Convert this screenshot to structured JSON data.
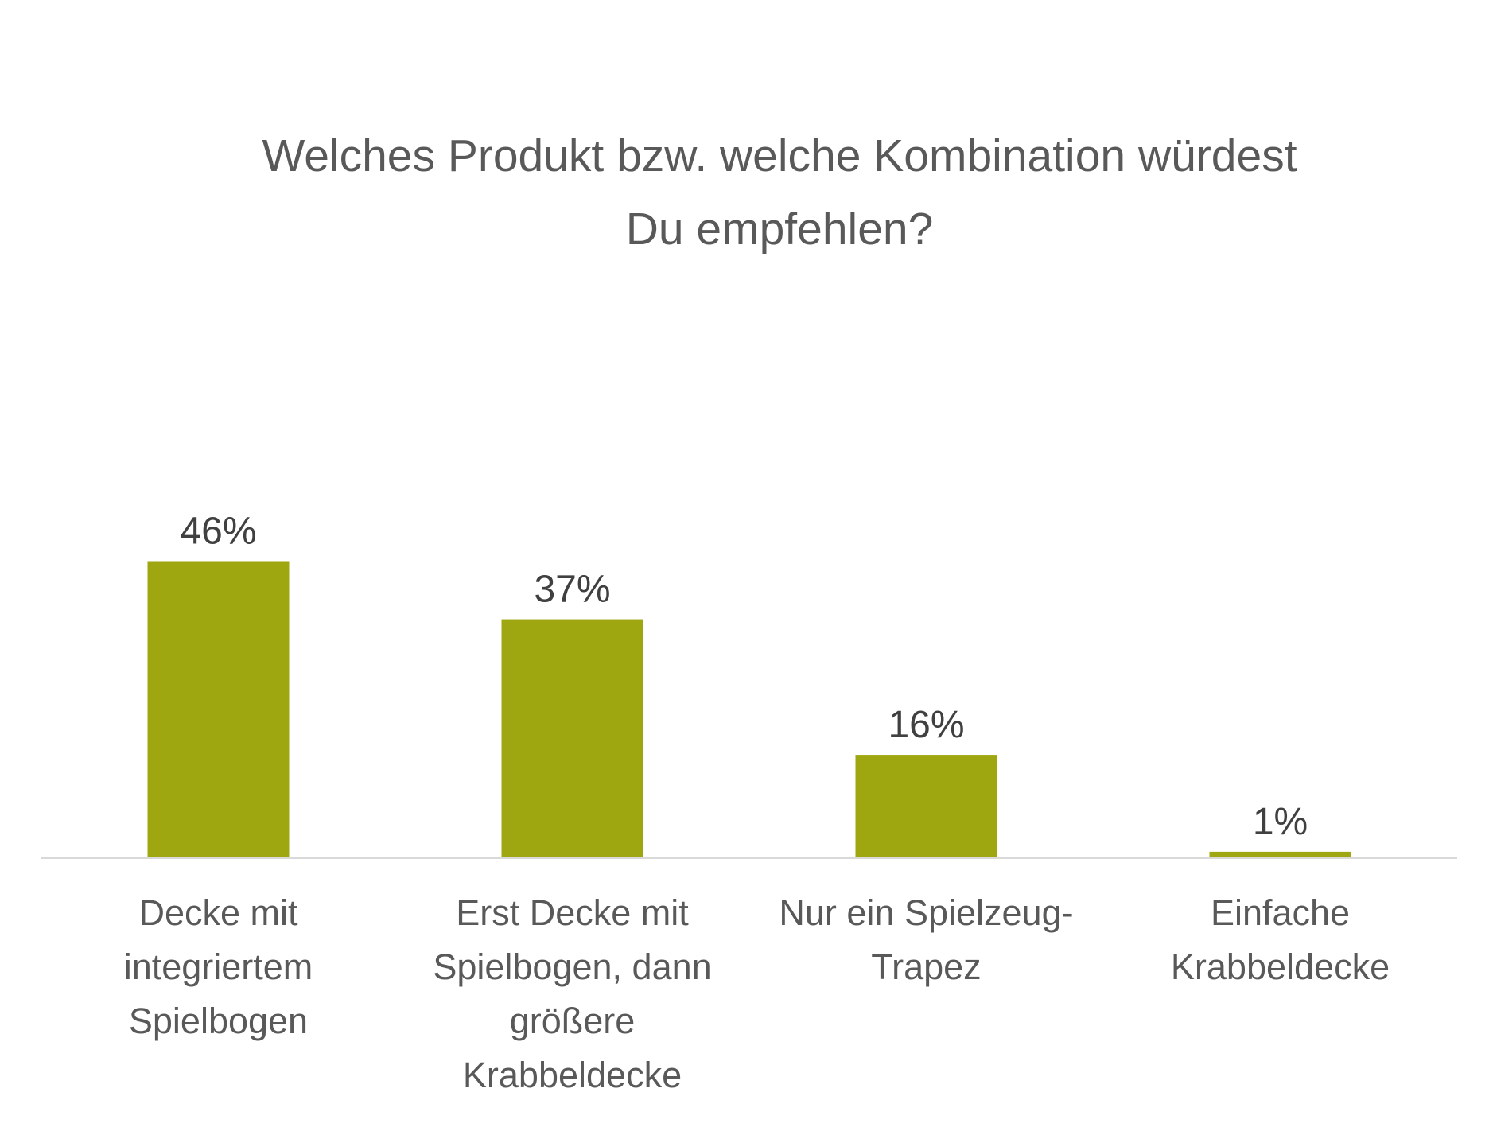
{
  "chart_data": {
    "type": "bar",
    "title": "Welches Produkt bzw. welche Kombination würdest\nDu empfehlen?",
    "categories": [
      "Decke mit integriertem Spielbogen",
      "Erst Decke mit Spielbogen, dann größere Krabbeldecke",
      "Nur ein Spielzeug-Trapez",
      "Einfache Krabbeldecke"
    ],
    "category_label_lines": [
      [
        "Decke mit",
        "integriertem",
        "Spielbogen"
      ],
      [
        "Erst Decke mit",
        "Spielbogen, dann",
        "größere",
        "Krabbeldecke"
      ],
      [
        "Nur ein Spielzeug-",
        "Trapez"
      ],
      [
        "Einfache",
        "Krabbeldecke"
      ]
    ],
    "values": [
      46,
      37,
      16,
      1
    ],
    "value_labels": [
      "46%",
      "37%",
      "16%",
      "1%"
    ],
    "xlabel": "",
    "ylabel": "",
    "ylim": [
      0,
      50
    ],
    "grid": false,
    "legend": "none",
    "bar_color": "#9ea70f",
    "axis_color": "#d9d9d9",
    "title_color": "#595959",
    "category_label_color": "#595959",
    "value_label_color": "#404040"
  }
}
